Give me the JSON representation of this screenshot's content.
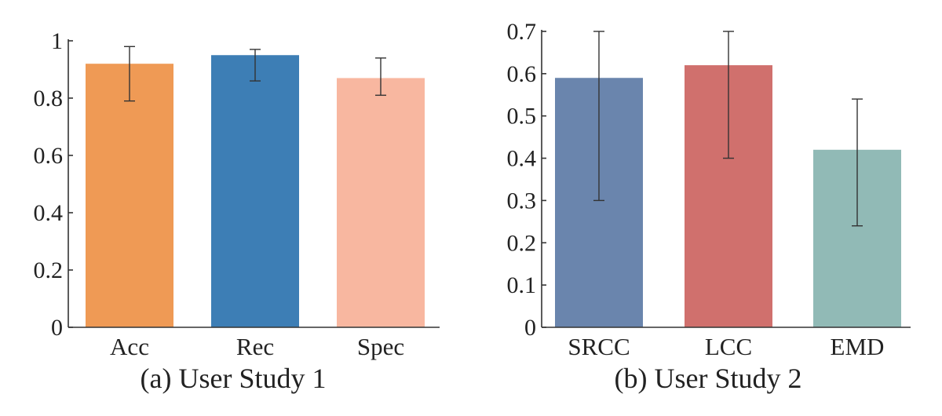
{
  "chart_data": [
    {
      "type": "bar",
      "caption": "(a) User Study 1",
      "categories": [
        "Acc",
        "Rec",
        "Spec"
      ],
      "values": [
        0.92,
        0.95,
        0.87
      ],
      "error_low": [
        0.79,
        0.86,
        0.81
      ],
      "error_high": [
        0.98,
        0.97,
        0.94
      ],
      "colors": [
        "#ef9a55",
        "#3d7eb5",
        "#f8b7a0"
      ],
      "ylim": [
        0,
        1
      ],
      "yticks": [
        0,
        0.2,
        0.4,
        0.6,
        0.8,
        1
      ],
      "ytick_labels": [
        "0",
        "0.2",
        "0.4",
        "0.6",
        "0.8",
        "1"
      ],
      "grid": false,
      "legend": "none"
    },
    {
      "type": "bar",
      "caption": "(b) User Study 2",
      "categories": [
        "SRCC",
        "LCC",
        "EMD"
      ],
      "values": [
        0.59,
        0.62,
        0.42
      ],
      "error_low": [
        0.3,
        0.4,
        0.24
      ],
      "error_high": [
        0.7,
        0.7,
        0.54
      ],
      "colors": [
        "#6a85ad",
        "#d0706d",
        "#91bab6"
      ],
      "ylim": [
        0,
        0.7
      ],
      "yticks": [
        0,
        0.1,
        0.2,
        0.3,
        0.4,
        0.5,
        0.6,
        0.7
      ],
      "ytick_labels": [
        "0",
        "0.1",
        "0.2",
        "0.3",
        "0.4",
        "0.5",
        "0.6",
        "0.7"
      ],
      "grid": false,
      "legend": "none"
    }
  ]
}
